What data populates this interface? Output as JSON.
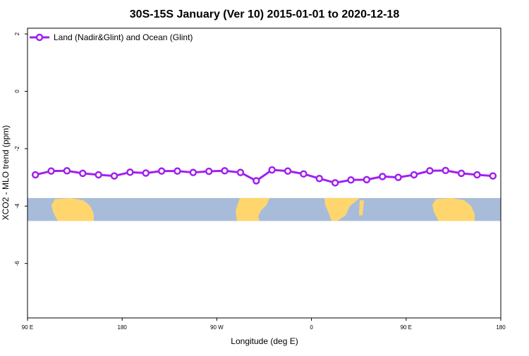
{
  "chart_data": {
    "type": "line",
    "title": "30S-15S January (Ver 10)   2015-01-01 to 2020-12-18",
    "xlabel": "Longitude (deg E)",
    "ylabel": "XCO2 - MLO trend (ppm)",
    "xlim": [
      90,
      540
    ],
    "ylim": [
      -7.9,
      2.2
    ],
    "x_ticks": [
      {
        "value": 90,
        "label": "90 E"
      },
      {
        "value": 180,
        "label": "180"
      },
      {
        "value": 270,
        "label": "90 W"
      },
      {
        "value": 360,
        "label": "0"
      },
      {
        "value": 450,
        "label": "90 E"
      },
      {
        "value": 540,
        "label": "180"
      }
    ],
    "y_ticks": [
      {
        "value": 2,
        "label": "2"
      },
      {
        "value": 0,
        "label": "0"
      },
      {
        "value": -2,
        "label": "-2"
      },
      {
        "value": -4,
        "label": "-4"
      },
      {
        "value": -6,
        "label": "-6"
      }
    ],
    "legend": {
      "placement": "top-left"
    },
    "series": [
      {
        "name": "Land (Nadir&Glint) and Ocean (Glint)",
        "color": "#a020f0",
        "x": [
          97.5,
          112.5,
          127.5,
          142.5,
          157.5,
          172.5,
          187.5,
          202.5,
          217.5,
          232.5,
          247.5,
          262.5,
          277.5,
          292.5,
          307.5,
          322.5,
          337.5,
          352.5,
          367.5,
          382.5,
          397.5,
          412.5,
          427.5,
          442.5,
          457.5,
          472.5,
          487.5,
          502.5,
          517.5,
          532.5
        ],
        "y": [
          -2.91,
          -2.78,
          -2.77,
          -2.86,
          -2.91,
          -2.95,
          -2.82,
          -2.85,
          -2.78,
          -2.78,
          -2.83,
          -2.79,
          -2.77,
          -2.83,
          -3.12,
          -2.74,
          -2.78,
          -2.88,
          -3.04,
          -3.19,
          -3.09,
          -3.08,
          -2.97,
          -3.0,
          -2.91,
          -2.77,
          -2.76,
          -2.86,
          -2.91,
          -2.95
        ]
      }
    ],
    "map_strip": {
      "y_range": [
        -3.72,
        -4.52
      ],
      "ocean_color": "#a8bcd9",
      "land_color": "#ffd66e"
    }
  }
}
